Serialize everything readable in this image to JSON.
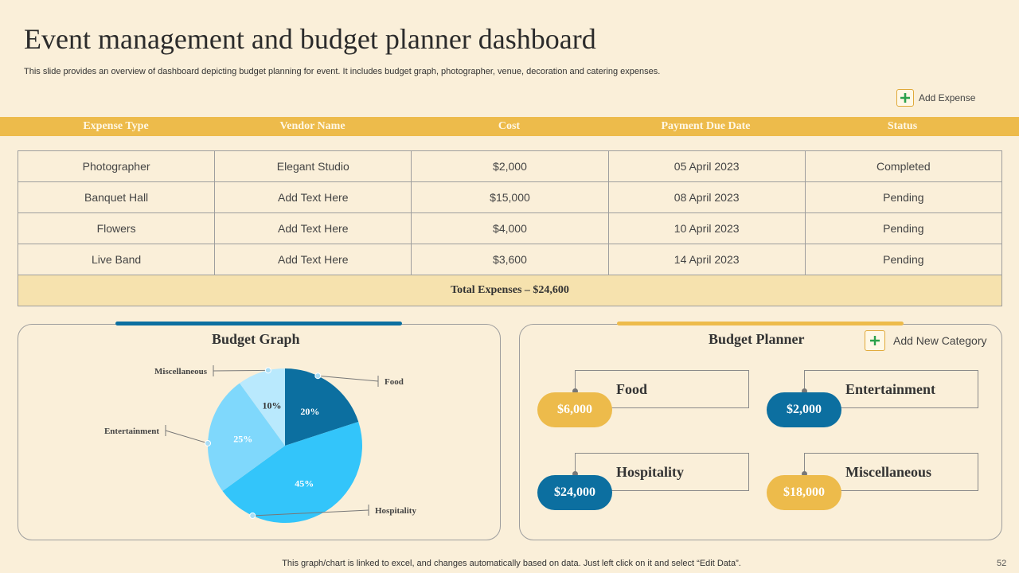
{
  "page": {
    "title": "Event management and budget planner dashboard",
    "subtitle": "This slide provides an overview of dashboard depicting budget planning for event. It includes budget graph, photographer, venue, decoration and catering expenses.",
    "add_expense_label": "Add Expense",
    "footer": "This graph/chart is linked to excel,  and changes automatically based on data. Just left click on it and select “Edit Data”.",
    "page_number": "52"
  },
  "table": {
    "headers": [
      "Expense Type",
      "Vendor Name",
      "Cost",
      "Payment Due Date",
      "Status"
    ],
    "rows": [
      [
        "Photographer",
        "Elegant Studio",
        "$2,000",
        "05 April 2023",
        "Completed"
      ],
      [
        "Banquet Hall",
        "Add Text Here",
        "$15,000",
        "08 April 2023",
        "Pending"
      ],
      [
        "Flowers",
        "Add Text Here",
        "$4,000",
        "10 April 2023",
        "Pending"
      ],
      [
        "Live Band",
        "Add Text Here",
        "$3,600",
        "14 April 2023",
        "Pending"
      ]
    ],
    "total": "Total Expenses – $24,600"
  },
  "budget_graph": {
    "title": "Budget Graph"
  },
  "chart_data": {
    "type": "pie",
    "title": "Budget Graph",
    "slices": [
      {
        "label": "Food",
        "value": 20,
        "display": "20%",
        "color": "#0C6FA0"
      },
      {
        "label": "Hospitality",
        "value": 45,
        "display": "45%",
        "color": "#33C5FA"
      },
      {
        "label": "Entertainment",
        "value": 25,
        "display": "25%",
        "color": "#7FD8FC"
      },
      {
        "label": "Miscellaneous",
        "value": 10,
        "display": "10%",
        "color": "#B9E9FD"
      }
    ]
  },
  "budget_planner": {
    "title": "Budget Planner",
    "add_category_label": "Add New Category",
    "categories": [
      {
        "name": "Food",
        "amount": "$6,000",
        "color": "#EDBB4B"
      },
      {
        "name": "Entertainment",
        "amount": "$2,000",
        "color": "#0C6FA0"
      },
      {
        "name": "Hospitality",
        "amount": "$24,000",
        "color": "#0C6FA0"
      },
      {
        "name": "Miscellaneous",
        "amount": "$18,000",
        "color": "#EDBB4B"
      }
    ]
  },
  "colors": {
    "header_bar": "#EDBB4B",
    "background": "#FAEFD9",
    "accent_blue": "#0C6FA0",
    "plus_green": "#2BA24C"
  }
}
